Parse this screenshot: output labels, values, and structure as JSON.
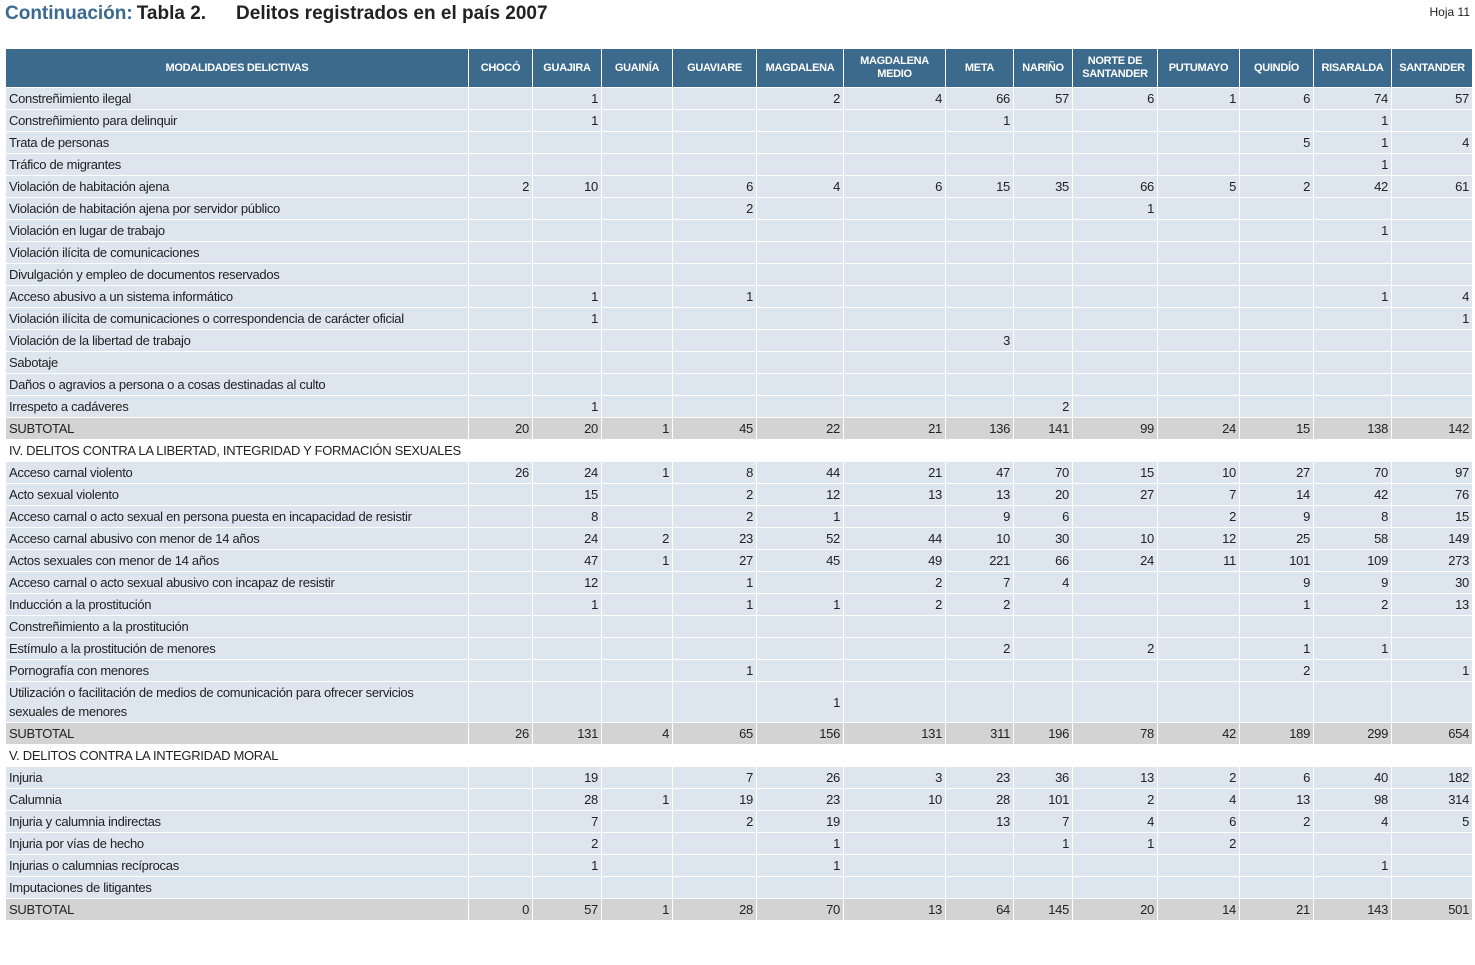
{
  "header": {
    "continuation": "Continuación:",
    "table_label": "Tabla 2.",
    "title": "Delitos registrados en el país 2007",
    "page": "Hoja 11"
  },
  "table": {
    "columns": [
      "MODALIDADES DELICTIVAS",
      "CHOCÓ",
      "GUAJIRA",
      "GUAINÍA",
      "GUAVIARE",
      "MAGDALENA",
      "MAGDALENA MEDIO",
      "META",
      "NARIÑO",
      "NORTE DE SANTANDER",
      "PUTUMAYO",
      "QUINDÍO",
      "RISARALDA",
      "SANTANDER"
    ],
    "groups": [
      {
        "rows": [
          {
            "label": "Constreñimiento ilegal",
            "values": [
              null,
              1,
              null,
              null,
              2,
              4,
              66,
              57,
              6,
              1,
              6,
              74,
              57
            ]
          },
          {
            "label": "Constreñimiento para delinquir",
            "values": [
              null,
              1,
              null,
              null,
              null,
              null,
              1,
              null,
              null,
              null,
              null,
              1,
              null
            ]
          },
          {
            "label": "Trata de personas",
            "values": [
              null,
              null,
              null,
              null,
              null,
              null,
              null,
              null,
              null,
              null,
              5,
              1,
              4
            ]
          },
          {
            "label": "Tráfico de migrantes",
            "values": [
              null,
              null,
              null,
              null,
              null,
              null,
              null,
              null,
              null,
              null,
              null,
              1,
              null
            ]
          },
          {
            "label": "Violación de habitación ajena",
            "values": [
              2,
              10,
              null,
              6,
              4,
              6,
              15,
              35,
              66,
              5,
              2,
              42,
              61
            ]
          },
          {
            "label": "Violación de habitación ajena por servidor público",
            "values": [
              null,
              null,
              null,
              2,
              null,
              null,
              null,
              null,
              1,
              null,
              null,
              null,
              null
            ]
          },
          {
            "label": "Violación en lugar de trabajo",
            "values": [
              null,
              null,
              null,
              null,
              null,
              null,
              null,
              null,
              null,
              null,
              null,
              1,
              null
            ]
          },
          {
            "label": "Violación ilícita de comunicaciones",
            "values": [
              null,
              null,
              null,
              null,
              null,
              null,
              null,
              null,
              null,
              null,
              null,
              null,
              null
            ]
          },
          {
            "label": "Divulgación y empleo de documentos reservados",
            "values": [
              null,
              null,
              null,
              null,
              null,
              null,
              null,
              null,
              null,
              null,
              null,
              null,
              null
            ]
          },
          {
            "label": "Acceso abusivo a un sistema informático",
            "values": [
              null,
              1,
              null,
              1,
              null,
              null,
              null,
              null,
              null,
              null,
              null,
              1,
              4
            ]
          },
          {
            "label": "Violación ilícita de comunicaciones o correspondencia de carácter oficial",
            "values": [
              null,
              1,
              null,
              null,
              null,
              null,
              null,
              null,
              null,
              null,
              null,
              null,
              1
            ]
          },
          {
            "label": "Violación de la libertad de trabajo",
            "values": [
              null,
              null,
              null,
              null,
              null,
              null,
              3,
              null,
              null,
              null,
              null,
              null,
              null
            ]
          },
          {
            "label": "Sabotaje",
            "values": [
              null,
              null,
              null,
              null,
              null,
              null,
              null,
              null,
              null,
              null,
              null,
              null,
              null
            ]
          },
          {
            "label": "Daños o agravios a persona o a cosas destinadas al culto",
            "values": [
              null,
              null,
              null,
              null,
              null,
              null,
              null,
              null,
              null,
              null,
              null,
              null,
              null
            ]
          },
          {
            "label": "Irrespeto a cadáveres",
            "values": [
              null,
              1,
              null,
              null,
              null,
              null,
              null,
              2,
              null,
              null,
              null,
              null,
              null
            ]
          }
        ],
        "subtotal": {
          "label": "SUBTOTAL",
          "values": [
            20,
            20,
            1,
            45,
            22,
            21,
            136,
            141,
            99,
            24,
            15,
            138,
            142
          ]
        }
      },
      {
        "title": "IV. DELITOS CONTRA LA LIBERTAD, INTEGRIDAD Y FORMACIÓN SEXUALES",
        "rows": [
          {
            "label": "Acceso carnal violento",
            "values": [
              26,
              24,
              1,
              8,
              44,
              21,
              47,
              70,
              15,
              10,
              27,
              70,
              97
            ]
          },
          {
            "label": "Acto sexual violento",
            "values": [
              null,
              15,
              null,
              2,
              12,
              13,
              13,
              20,
              27,
              7,
              14,
              42,
              76
            ]
          },
          {
            "label": "Acceso carnal o acto sexual en persona puesta en incapacidad de resistir",
            "values": [
              null,
              8,
              null,
              2,
              1,
              null,
              9,
              6,
              null,
              2,
              9,
              8,
              15
            ]
          },
          {
            "label": "Acceso carnal abusivo con menor de 14 años",
            "values": [
              null,
              24,
              2,
              23,
              52,
              44,
              10,
              30,
              10,
              12,
              25,
              58,
              149
            ]
          },
          {
            "label": "Actos sexuales con menor de 14 años",
            "values": [
              null,
              47,
              1,
              27,
              45,
              49,
              221,
              66,
              24,
              11,
              101,
              109,
              273
            ]
          },
          {
            "label": "Acceso carnal o acto sexual abusivo con incapaz de resistir",
            "values": [
              null,
              12,
              null,
              1,
              null,
              2,
              7,
              4,
              null,
              null,
              9,
              9,
              30
            ]
          },
          {
            "label": "Inducción a la prostitución",
            "values": [
              null,
              1,
              null,
              1,
              1,
              2,
              2,
              null,
              null,
              null,
              1,
              2,
              13
            ]
          },
          {
            "label": "Constreñimiento a la prostitución",
            "values": [
              null,
              null,
              null,
              null,
              null,
              null,
              null,
              null,
              null,
              null,
              null,
              null,
              null
            ]
          },
          {
            "label": "Estímulo a la prostitución de menores",
            "values": [
              null,
              null,
              null,
              null,
              null,
              null,
              2,
              null,
              2,
              null,
              1,
              1,
              null
            ]
          },
          {
            "label": "Pornografía con menores",
            "values": [
              null,
              null,
              null,
              1,
              null,
              null,
              null,
              null,
              null,
              null,
              2,
              null,
              1
            ]
          },
          {
            "label": "Utilización o facilitación de medios de comunicación para ofrecer servicios sexuales de menores",
            "values": [
              null,
              null,
              null,
              null,
              1,
              null,
              null,
              null,
              null,
              null,
              null,
              null,
              null
            ]
          }
        ],
        "subtotal": {
          "label": "SUBTOTAL",
          "values": [
            26,
            131,
            4,
            65,
            156,
            131,
            311,
            196,
            78,
            42,
            189,
            299,
            654
          ]
        }
      },
      {
        "title": "V. DELITOS CONTRA LA INTEGRIDAD MORAL",
        "rows": [
          {
            "label": "Injuria",
            "values": [
              null,
              19,
              null,
              7,
              26,
              3,
              23,
              36,
              13,
              2,
              6,
              40,
              182
            ]
          },
          {
            "label": "Calumnia",
            "values": [
              null,
              28,
              1,
              19,
              23,
              10,
              28,
              101,
              2,
              4,
              13,
              98,
              314
            ]
          },
          {
            "label": "Injuria y calumnia indirectas",
            "values": [
              null,
              7,
              null,
              2,
              19,
              null,
              13,
              7,
              4,
              6,
              2,
              4,
              5
            ]
          },
          {
            "label": "Injuria por vías de hecho",
            "values": [
              null,
              2,
              null,
              null,
              1,
              null,
              null,
              1,
              1,
              2,
              null,
              null,
              null
            ]
          },
          {
            "label": "Injurias o calumnias recíprocas",
            "values": [
              null,
              1,
              null,
              null,
              1,
              null,
              null,
              null,
              null,
              null,
              null,
              1,
              null
            ]
          },
          {
            "label": "Imputaciones de litigantes",
            "values": [
              null,
              null,
              null,
              null,
              null,
              null,
              null,
              null,
              null,
              null,
              null,
              null,
              null
            ]
          }
        ],
        "subtotal": {
          "label": "SUBTOTAL",
          "values": [
            0,
            57,
            1,
            28,
            70,
            13,
            64,
            145,
            20,
            14,
            21,
            143,
            501
          ]
        }
      }
    ]
  }
}
